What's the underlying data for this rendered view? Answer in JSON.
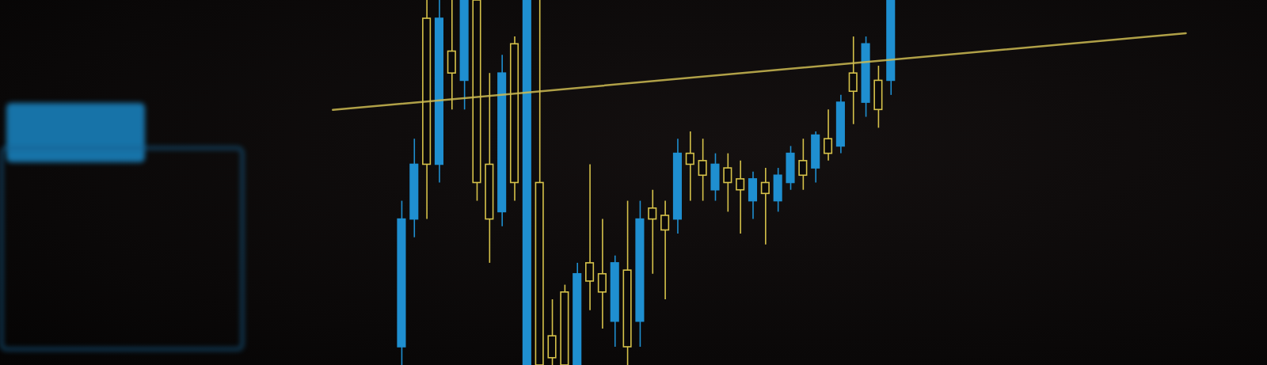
{
  "chart_data": {
    "type": "candlestick",
    "x": [
      1,
      2,
      3,
      4,
      5,
      6,
      7,
      8,
      9,
      10,
      11,
      12,
      13,
      14,
      15,
      16,
      17,
      18,
      19,
      20,
      21,
      22,
      23,
      24,
      25,
      26,
      27,
      28,
      29,
      30,
      31,
      32,
      33,
      34,
      35,
      36,
      37,
      38,
      39,
      40
    ],
    "open": [
      40,
      55,
      55,
      95,
      80,
      100,
      50,
      40,
      80,
      50,
      100,
      0,
      2,
      0,
      25,
      23,
      20,
      28,
      5,
      40,
      40,
      37,
      58,
      55,
      52,
      55,
      50,
      48,
      51,
      47,
      52,
      58,
      52,
      63,
      58,
      72,
      75,
      88,
      70,
      100
    ],
    "close": [
      5,
      40,
      95,
      55,
      86,
      78,
      100,
      55,
      42,
      88,
      0,
      50,
      8,
      20,
      0,
      28,
      25,
      12,
      26,
      12,
      43,
      41,
      40,
      58,
      56,
      48,
      54,
      51,
      45,
      50,
      45,
      50,
      56,
      54,
      62,
      60,
      80,
      72,
      78,
      78
    ],
    "high": [
      45,
      62,
      100,
      100,
      100,
      100,
      100,
      80,
      85,
      90,
      100,
      100,
      18,
      22,
      28,
      55,
      40,
      30,
      45,
      45,
      48,
      45,
      62,
      64,
      62,
      58,
      58,
      56,
      53,
      54,
      54,
      60,
      62,
      64,
      70,
      74,
      90,
      90,
      82,
      100
    ],
    "low": [
      0,
      35,
      40,
      50,
      70,
      70,
      45,
      28,
      38,
      45,
      0,
      0,
      0,
      0,
      0,
      15,
      10,
      5,
      0,
      5,
      25,
      18,
      36,
      45,
      45,
      45,
      42,
      36,
      40,
      33,
      42,
      48,
      48,
      50,
      56,
      58,
      66,
      68,
      65,
      74
    ],
    "colors": [
      "#1f8fd0",
      "#1f8fd0",
      "#d6c24a",
      "#1f8fd0",
      "#d6c24a",
      "#1f8fd0",
      "#d6c24a",
      "#d6c24a",
      "#1f8fd0",
      "#d6c24a",
      "#1f8fd0",
      "#d6c24a",
      "#d6c24a",
      "#d6c24a",
      "#1f8fd0",
      "#d6c24a",
      "#d6c24a",
      "#1f8fd0",
      "#d6c24a",
      "#1f8fd0",
      "#d6c24a",
      "#d6c24a",
      "#1f8fd0",
      "#d6c24a",
      "#d6c24a",
      "#1f8fd0",
      "#d6c24a",
      "#d6c24a",
      "#1f8fd0",
      "#d6c24a",
      "#1f8fd0",
      "#1f8fd0",
      "#d6c24a",
      "#1f8fd0",
      "#d6c24a",
      "#1f8fd0",
      "#d6c24a",
      "#1f8fd0",
      "#d6c24a",
      "#1f8fd0"
    ],
    "series": [
      {
        "type": "line",
        "color": "#cdbb52",
        "x": [
          -4.5,
          63.5
        ],
        "values": [
          70,
          91
        ]
      }
    ],
    "xlim": [
      -31,
      70
    ],
    "ylim": [
      0,
      100
    ],
    "grid": false,
    "tick_labels": false
  }
}
